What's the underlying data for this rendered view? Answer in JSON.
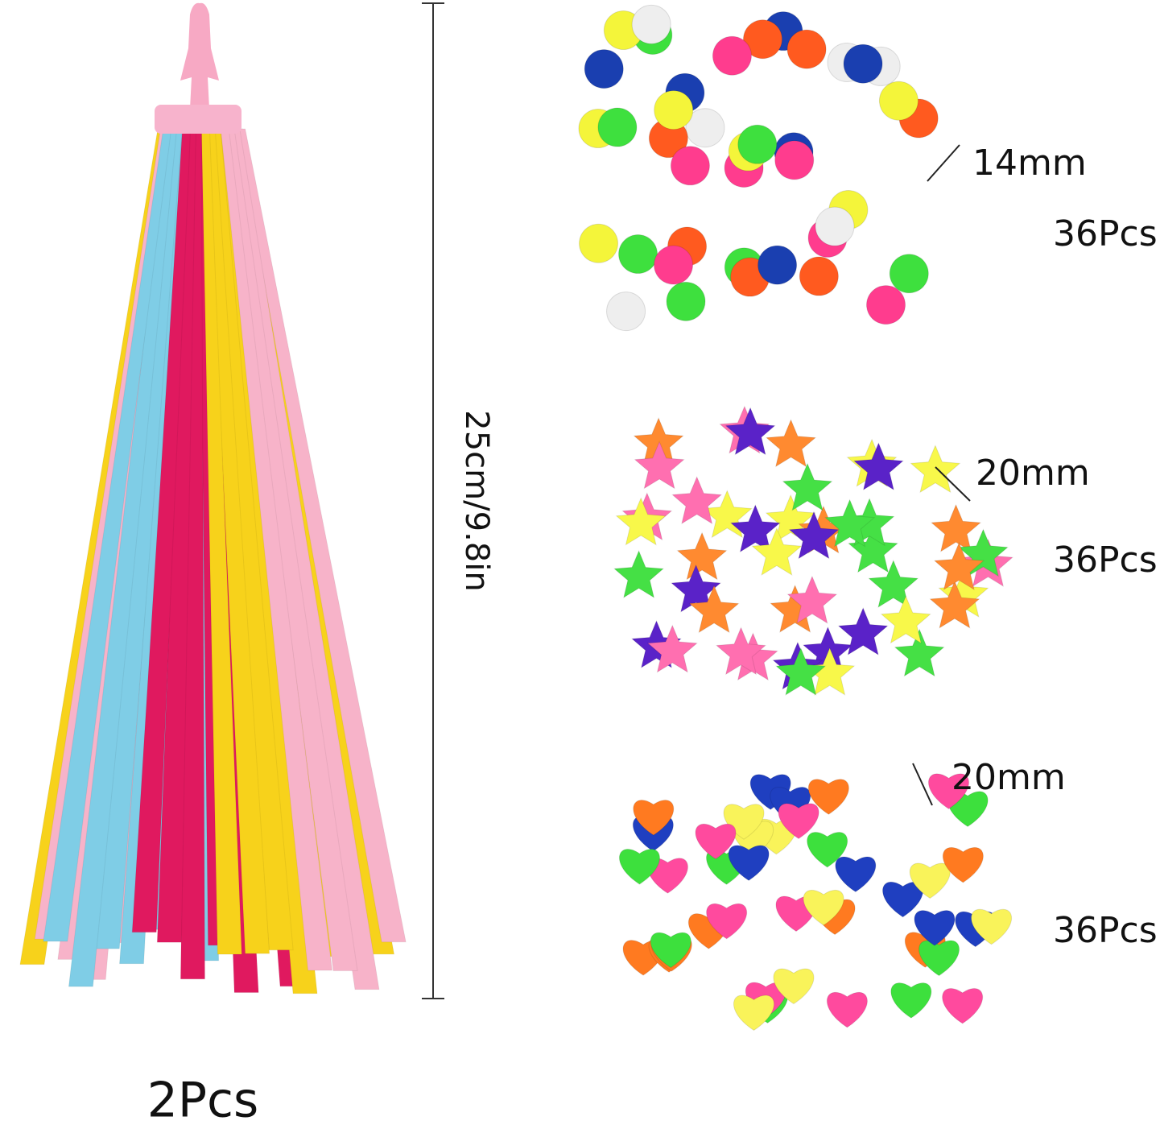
{
  "tassel": {
    "height_label": "25cm/9.8in",
    "quantity": "2Pcs"
  },
  "groups": [
    {
      "size": "14mm",
      "quantity": "36Pcs"
    },
    {
      "size": "20mm",
      "quantity": "36Pcs"
    },
    {
      "size": "20mm",
      "quantity": "36Pcs"
    }
  ]
}
